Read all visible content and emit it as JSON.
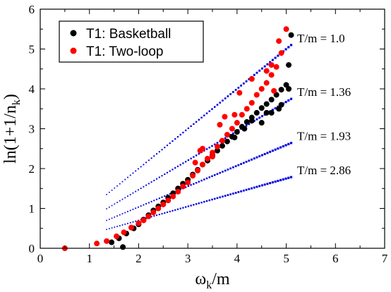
{
  "chart_data": {
    "type": "scatter",
    "xlabel": "ω",
    "xlabel_sub": "k",
    "xlabel_tail": "/m",
    "ylabel": "ln(1+1/n",
    "ylabel_sub": "k",
    "ylabel_tail": ")",
    "xlim": [
      0,
      7
    ],
    "ylim": [
      0,
      6
    ],
    "xticks": [
      0,
      1,
      2,
      3,
      4,
      5,
      6,
      7
    ],
    "yticks": [
      0,
      1,
      2,
      3,
      4,
      5,
      6
    ],
    "grid": false,
    "legend_position": "top-left",
    "series": [
      {
        "name": "T1: Basketball",
        "color": "#000000",
        "points": [
          [
            1.45,
            0.15
          ],
          [
            1.6,
            0.25
          ],
          [
            1.75,
            0.37
          ],
          [
            1.9,
            0.5
          ],
          [
            2.0,
            0.6
          ],
          [
            2.1,
            0.72
          ],
          [
            2.2,
            0.83
          ],
          [
            2.3,
            0.95
          ],
          [
            2.4,
            1.05
          ],
          [
            2.5,
            1.15
          ],
          [
            2.6,
            1.27
          ],
          [
            2.7,
            1.38
          ],
          [
            2.8,
            1.5
          ],
          [
            2.9,
            1.62
          ],
          [
            3.0,
            1.72
          ],
          [
            3.1,
            1.85
          ],
          [
            3.2,
            1.97
          ],
          [
            3.3,
            2.1
          ],
          [
            3.4,
            2.2
          ],
          [
            3.5,
            2.33
          ],
          [
            3.6,
            2.45
          ],
          [
            3.7,
            2.57
          ],
          [
            3.8,
            2.68
          ],
          [
            3.9,
            2.8
          ],
          [
            4.0,
            2.92
          ],
          [
            4.1,
            3.05
          ],
          [
            4.2,
            3.17
          ],
          [
            4.3,
            3.28
          ],
          [
            4.4,
            3.4
          ],
          [
            4.5,
            3.52
          ],
          [
            4.6,
            3.62
          ],
          [
            4.7,
            3.73
          ],
          [
            4.8,
            3.85
          ],
          [
            4.9,
            3.98
          ],
          [
            5.0,
            4.1
          ],
          [
            4.5,
            3.15
          ],
          [
            4.7,
            3.4
          ],
          [
            4.9,
            3.6
          ],
          [
            5.05,
            4.6
          ],
          [
            5.1,
            5.35
          ],
          [
            5.05,
            4.0
          ],
          [
            4.85,
            3.5
          ],
          [
            4.6,
            3.4
          ],
          [
            4.3,
            3.2
          ],
          [
            3.95,
            2.78
          ],
          [
            4.15,
            3.0
          ],
          [
            1.68,
            0.03
          ]
        ]
      },
      {
        "name": "T1: Two-loop",
        "color": "#ff0000",
        "points": [
          [
            0.5,
            0.0
          ],
          [
            1.15,
            0.12
          ],
          [
            1.35,
            0.18
          ],
          [
            1.55,
            0.3
          ],
          [
            1.7,
            0.4
          ],
          [
            1.85,
            0.52
          ],
          [
            2.0,
            0.63
          ],
          [
            2.1,
            0.7
          ],
          [
            2.2,
            0.8
          ],
          [
            2.3,
            0.9
          ],
          [
            2.4,
            1.0
          ],
          [
            2.5,
            1.1
          ],
          [
            2.6,
            1.2
          ],
          [
            2.7,
            1.3
          ],
          [
            2.8,
            1.42
          ],
          [
            2.9,
            1.55
          ],
          [
            3.0,
            1.65
          ],
          [
            3.1,
            1.82
          ],
          [
            3.2,
            1.95
          ],
          [
            3.3,
            2.1
          ],
          [
            3.4,
            2.25
          ],
          [
            3.5,
            2.4
          ],
          [
            3.6,
            2.55
          ],
          [
            3.7,
            2.7
          ],
          [
            3.8,
            2.85
          ],
          [
            3.9,
            3.0
          ],
          [
            4.0,
            3.15
          ],
          [
            4.1,
            3.35
          ],
          [
            4.2,
            3.5
          ],
          [
            4.3,
            3.65
          ],
          [
            4.4,
            3.85
          ],
          [
            4.5,
            4.0
          ],
          [
            4.6,
            4.15
          ],
          [
            4.7,
            4.35
          ],
          [
            4.8,
            4.55
          ],
          [
            4.9,
            4.9
          ],
          [
            5.0,
            5.5
          ],
          [
            4.3,
            4.25
          ],
          [
            4.6,
            4.45
          ],
          [
            4.7,
            4.6
          ],
          [
            4.85,
            5.2
          ],
          [
            4.75,
            3.95
          ],
          [
            3.3,
            2.5
          ],
          [
            3.5,
            2.3
          ],
          [
            3.15,
            2.15
          ],
          [
            3.75,
            3.3
          ],
          [
            3.95,
            3.35
          ],
          [
            4.05,
            3.9
          ],
          [
            3.65,
            3.1
          ],
          [
            3.25,
            2.45
          ]
        ]
      }
    ],
    "lines": [
      {
        "label": "T/m = 1.0",
        "slope": 1.0,
        "x": [
          1.35,
          5.1
        ],
        "color": "#0000e0"
      },
      {
        "label": "T/m = 1.36",
        "slope": 0.735,
        "x": [
          1.35,
          5.1
        ],
        "color": "#0000e0"
      },
      {
        "label": "T/m = 1.93",
        "slope": 0.518,
        "x": [
          1.35,
          5.1
        ],
        "color": "#0000e0"
      },
      {
        "label": "T/m = 2.86",
        "slope": 0.35,
        "x": [
          1.35,
          5.1
        ],
        "color": "#0000e0"
      }
    ]
  }
}
